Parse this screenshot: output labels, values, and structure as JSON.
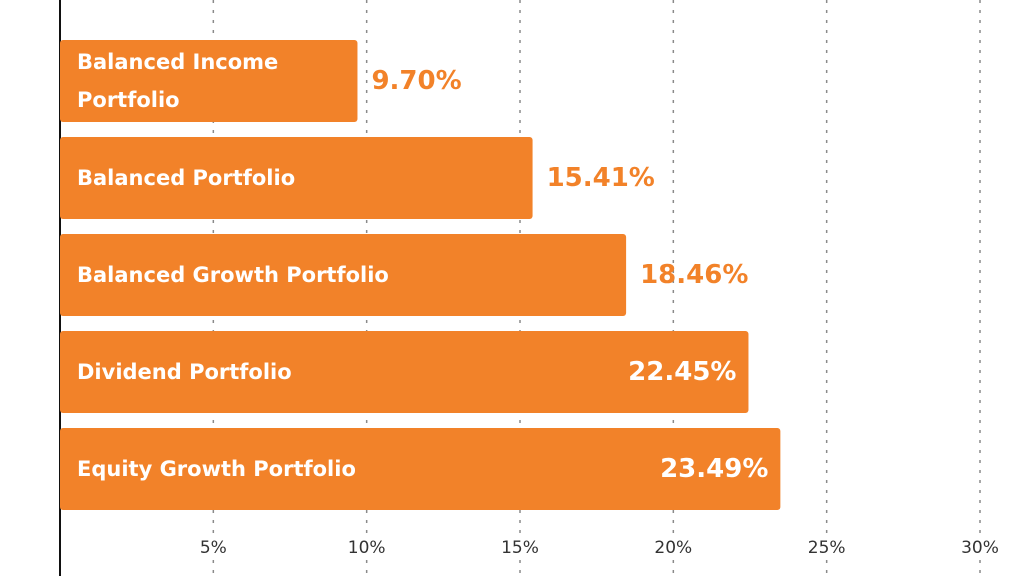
{
  "chart_data": {
    "type": "bar",
    "orientation": "horizontal",
    "categories": [
      "Balanced Income Portfolio",
      "Balanced Portfolio",
      "Balanced Growth Portfolio",
      "Dividend Portfolio",
      "Equity Growth Portfolio"
    ],
    "values": [
      9.7,
      15.41,
      18.46,
      22.45,
      23.49
    ],
    "value_labels": [
      "9.70%",
      "15.41%",
      "18.46%",
      "22.45%",
      "23.49%"
    ],
    "color": "#f28229",
    "xlim": [
      0,
      30
    ],
    "xticks": [
      {
        "value": 5,
        "label": "5%"
      },
      {
        "value": 10,
        "label": "10%"
      },
      {
        "value": 15,
        "label": "15%"
      },
      {
        "value": 20,
        "label": "20%"
      },
      {
        "value": 25,
        "label": "25%"
      },
      {
        "value": 30,
        "label": "30%"
      }
    ],
    "grid": true
  }
}
